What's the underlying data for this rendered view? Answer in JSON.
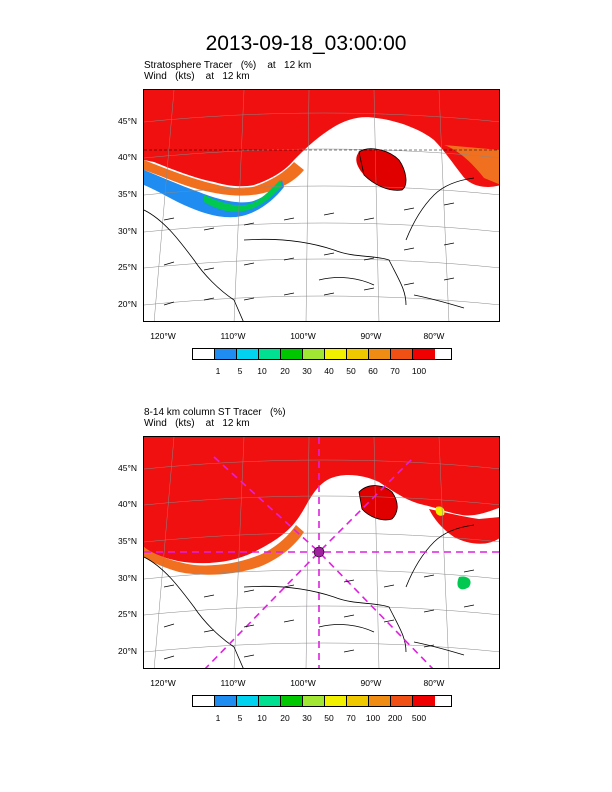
{
  "title": "2013-09-18_03:00:00",
  "panels": [
    {
      "id": "top",
      "label_line1": "Stratosphere Tracer   (%)    at   12 km",
      "label_line2": "Wind   (kts)    at   12 km",
      "lat_ticks": [
        "45°N",
        "40°N",
        "35°N",
        "30°N",
        "25°N",
        "20°N"
      ],
      "lon_ticks": [
        "120°W",
        "110°W",
        "100°W",
        "90°W",
        "80°W"
      ],
      "colorbar_labels": [
        "1",
        "5",
        "10",
        "20",
        "30",
        "40",
        "50",
        "60",
        "70",
        "100"
      ]
    },
    {
      "id": "bottom",
      "label_line1": "8-14 km column ST Tracer   (%)",
      "label_line2": "Wind   (kts)    at   12 km",
      "lat_ticks": [
        "45°N",
        "40°N",
        "35°N",
        "30°N",
        "25°N",
        "20°N"
      ],
      "lon_ticks": [
        "120°W",
        "110°W",
        "100°W",
        "90°W",
        "80°W"
      ],
      "colorbar_labels": [
        "1",
        "5",
        "10",
        "20",
        "30",
        "50",
        "70",
        "100",
        "200",
        "500"
      ]
    }
  ],
  "colorbar_colors": [
    "#ffffff",
    "#1e8cf0",
    "#00d2f0",
    "#00e090",
    "#00c800",
    "#a0e632",
    "#f0f000",
    "#f0c800",
    "#f08c14",
    "#f05014",
    "#f00000"
  ]
}
